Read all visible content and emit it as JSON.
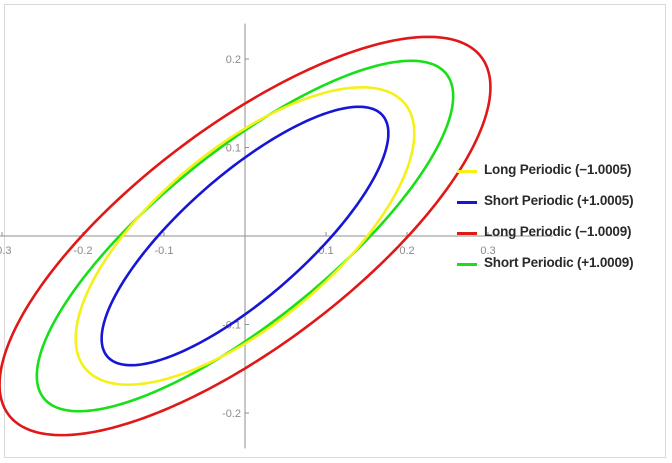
{
  "chart_data": {
    "type": "line",
    "title": "",
    "xlabel": "",
    "ylabel": "",
    "xlim": [
      -0.38,
      0.38
    ],
    "ylim": [
      -0.24,
      0.24
    ],
    "x_ticks": [
      {
        "value": -0.3,
        "label": "-0.3"
      },
      {
        "value": -0.2,
        "label": "-0.2"
      },
      {
        "value": -0.1,
        "label": "-0.1"
      },
      {
        "value": 0.1,
        "label": "0.1"
      },
      {
        "value": 0.2,
        "label": "0.2"
      },
      {
        "value": 0.3,
        "label": "0.3"
      }
    ],
    "y_ticks": [
      {
        "value": 0.2,
        "label": "0.2"
      },
      {
        "value": 0.1,
        "label": "0.1"
      },
      {
        "value": -0.1,
        "label": "-0.1"
      },
      {
        "value": -0.2,
        "label": "-0.2"
      }
    ],
    "grid": false,
    "legend_position": "right",
    "series": [
      {
        "name": "Long Periodic (−1.0005)",
        "color": "#f5f01a",
        "shape": "closed-curve",
        "extent": {
          "x_min": -0.209,
          "x_max": 0.209,
          "y_min": -0.168,
          "y_max": 0.168,
          "y_at_x0": 0.116
        }
      },
      {
        "name": "Short Periodic (+1.0005)",
        "color": "#1616d4",
        "shape": "closed-curve",
        "extent": {
          "x_min": -0.177,
          "x_max": 0.177,
          "y_min": -0.146,
          "y_max": 0.146,
          "y_at_x0": 0.116
        }
      },
      {
        "name": "Long Periodic (−1.0009)",
        "color": "#e01818",
        "shape": "closed-curve",
        "extent": {
          "x_min": -0.303,
          "x_max": 0.303,
          "y_min": -0.225,
          "y_max": 0.225,
          "y_at_x0": 0.168
        }
      },
      {
        "name": "Short Periodic (+1.0009)",
        "color": "#18e018",
        "shape": "closed-curve",
        "extent": {
          "x_min": -0.257,
          "x_max": 0.257,
          "y_min": -0.198,
          "y_max": 0.198,
          "y_at_x0": 0.158
        }
      }
    ]
  }
}
